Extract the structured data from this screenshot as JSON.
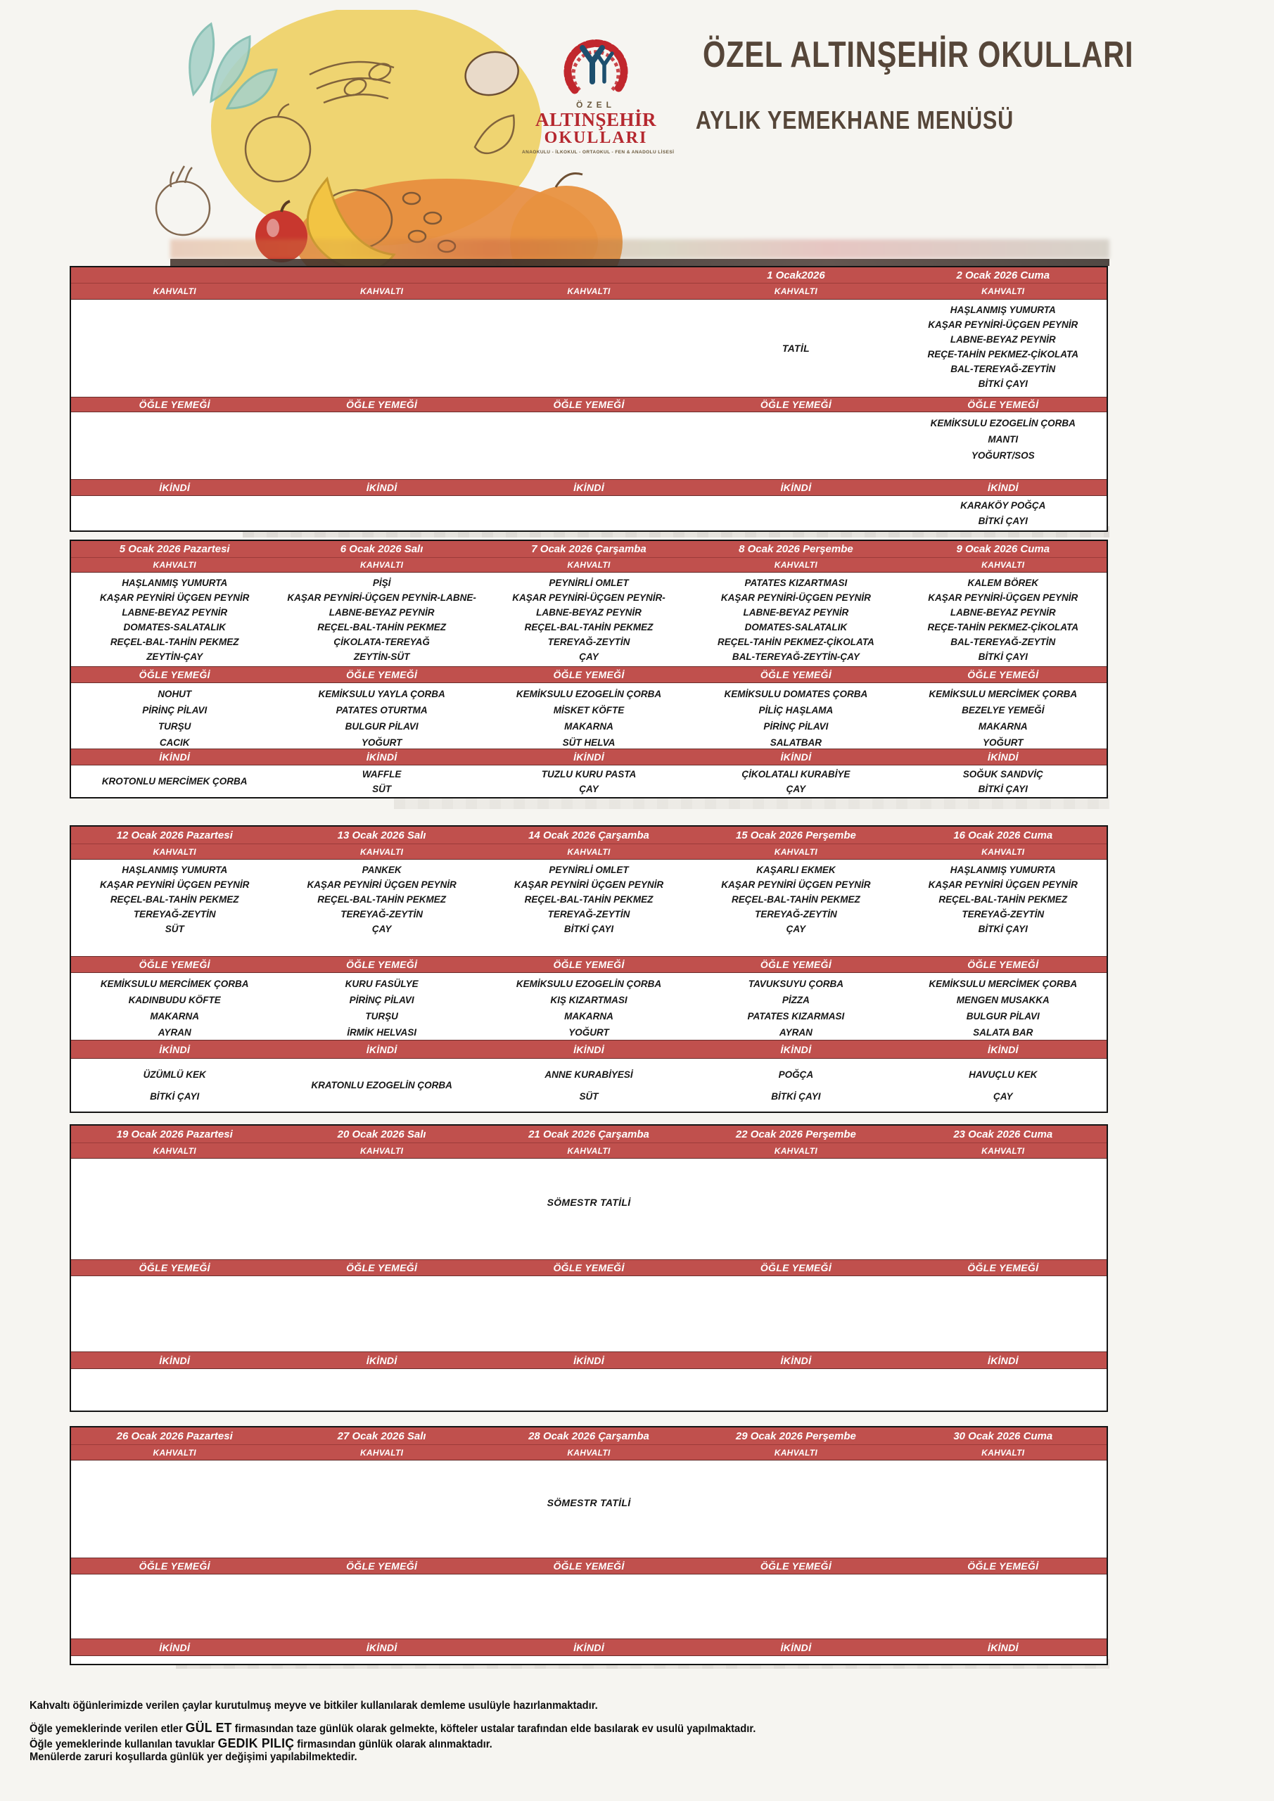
{
  "colors": {
    "accent": "#c0504d",
    "brand_red": "#b5282f",
    "brand_blue": "#1d4f6e",
    "brand_brown": "#564639"
  },
  "header": {
    "logo": {
      "ozel": "ÖZEL",
      "name1": "ALTINŞEHİR",
      "name2": "OKULLARI",
      "tagline": "ANAOKULU - İLKOKUL - ORTAOKUL - FEN & ANADOLU LİSESİ"
    },
    "title": "ÖZEL ALTINŞEHİR OKULLARI",
    "subtitle": "AYLIK YEMEKHANE MENÜSÜ"
  },
  "labels": {
    "kahvalti": "KAHVALTI",
    "ogle_yemegi": "ÖĞLE YEMEĞİ",
    "ikindi": "İKİNDİ"
  },
  "weeks": [
    {
      "holiday": null,
      "days": [
        {
          "date": "",
          "breakfast": [],
          "lunch": [],
          "snack": []
        },
        {
          "date": "",
          "breakfast": [],
          "lunch": [],
          "snack": []
        },
        {
          "date": "",
          "breakfast": [],
          "lunch": [],
          "snack": []
        },
        {
          "date": "1 Ocak2026",
          "breakfast_note": "TATİL",
          "breakfast": [],
          "lunch": [],
          "snack": []
        },
        {
          "date": "2 Ocak 2026 Cuma",
          "breakfast": [
            "HAŞLANMIŞ YUMURTA",
            "KAŞAR PEYNİRİ-ÜÇGEN PEYNİR",
            "LABNE-BEYAZ PEYNİR",
            "REÇE-TAHİN PEKMEZ-ÇİKOLATA",
            "BAL-TEREYAĞ-ZEYTİN",
            "BİTKİ ÇAYI"
          ],
          "lunch": [
            "KEMİKSULU EZOGELİN ÇORBA",
            "MANTI",
            "YOĞURT/SOS"
          ],
          "snack": [
            "KARAKÖY POĞÇA",
            "BİTKİ ÇAYI"
          ]
        }
      ]
    },
    {
      "holiday": null,
      "days": [
        {
          "date": "5 Ocak 2026 Pazartesi",
          "breakfast": [
            "HAŞLANMIŞ YUMURTA",
            "KAŞAR PEYNİRİ ÜÇGEN PEYNİR",
            "LABNE-BEYAZ PEYNİR",
            "DOMATES-SALATALIK",
            "REÇEL-BAL-TAHİN PEKMEZ",
            "ZEYTİN-ÇAY"
          ],
          "lunch": [
            "NOHUT",
            "PİRİNÇ PİLAVI",
            "TURŞU",
            "CACIK"
          ],
          "snack": [
            "KROTONLU MERCİMEK ÇORBA"
          ]
        },
        {
          "date": "6 Ocak 2026 Salı",
          "breakfast": [
            "PİŞİ",
            "KAŞAR PEYNİRİ-ÜÇGEN PEYNİR-LABNE-",
            "LABNE-BEYAZ PEYNİR",
            "REÇEL-BAL-TAHİN PEKMEZ",
            "ÇİKOLATA-TEREYAĞ",
            "ZEYTİN-SÜT"
          ],
          "lunch": [
            "KEMİKSULU YAYLA ÇORBA",
            "PATATES OTURTMA",
            "BULGUR PİLAVI",
            "YOĞURT"
          ],
          "snack": [
            "WAFFLE",
            "SÜT"
          ]
        },
        {
          "date": "7 Ocak 2026 Çarşamba",
          "breakfast": [
            "PEYNİRLİ OMLET",
            "KAŞAR PEYNİRİ-ÜÇGEN PEYNİR-",
            "LABNE-BEYAZ PEYNİR",
            "REÇEL-BAL-TAHİN PEKMEZ",
            "TEREYAĞ-ZEYTİN",
            "ÇAY"
          ],
          "lunch": [
            "KEMİKSULU EZOGELİN ÇORBA",
            "MİSKET KÖFTE",
            "MAKARNA",
            "SÜT HELVA"
          ],
          "snack": [
            "TUZLU KURU PASTA",
            "ÇAY"
          ]
        },
        {
          "date": "8 Ocak 2026 Perşembe",
          "breakfast": [
            "PATATES KIZARTMASI",
            "KAŞAR PEYNİRİ-ÜÇGEN PEYNİR",
            "LABNE-BEYAZ PEYNİR",
            "DOMATES-SALATALIK",
            "REÇEL-TAHİN PEKMEZ-ÇİKOLATA",
            "BAL-TEREYAĞ-ZEYTİN-ÇAY"
          ],
          "lunch": [
            "KEMİKSULU DOMATES ÇORBA",
            "PİLİÇ HAŞLAMA",
            "PİRİNÇ PİLAVI",
            "SALATBAR"
          ],
          "snack": [
            "ÇİKOLATALI KURABİYE",
            "ÇAY"
          ]
        },
        {
          "date": "9 Ocak 2026 Cuma",
          "breakfast": [
            "KALEM BÖREK",
            "KAŞAR PEYNİRİ-ÜÇGEN PEYNİR",
            "LABNE-BEYAZ PEYNİR",
            "REÇE-TAHİN PEKMEZ-ÇİKOLATA",
            "BAL-TEREYAĞ-ZEYTİN",
            "BİTKİ ÇAYI"
          ],
          "lunch": [
            "KEMİKSULU MERCİMEK ÇORBA",
            "BEZELYE YEMEĞİ",
            "MAKARNA",
            "YOĞURT"
          ],
          "snack": [
            "SOĞUK SANDVİÇ",
            "BİTKİ ÇAYI"
          ]
        }
      ]
    },
    {
      "holiday": null,
      "days": [
        {
          "date": "12 Ocak 2026 Pazartesi",
          "breakfast": [
            "HAŞLANMIŞ YUMURTA",
            "KAŞAR PEYNİRİ ÜÇGEN PEYNİR",
            "REÇEL-BAL-TAHİN PEKMEZ",
            "TEREYAĞ-ZEYTİN",
            "SÜT"
          ],
          "lunch": [
            "KEMİKSULU MERCİMEK ÇORBA",
            "KADINBUDU KÖFTE",
            "MAKARNA",
            "AYRAN"
          ],
          "snack": [
            "ÜZÜMLÜ KEK",
            "BİTKİ ÇAYI"
          ]
        },
        {
          "date": "13 Ocak 2026 Salı",
          "breakfast": [
            "PANKEK",
            "KAŞAR PEYNİRİ ÜÇGEN PEYNİR",
            "REÇEL-BAL-TAHİN PEKMEZ",
            "TEREYAĞ-ZEYTİN",
            "ÇAY"
          ],
          "lunch": [
            "KURU FASÜLYE",
            "PİRİNÇ PİLAVI",
            "TURŞU",
            "İRMİK HELVASI"
          ],
          "snack": [
            "KRATONLU EZOGELİN ÇORBA"
          ]
        },
        {
          "date": "14 Ocak 2026 Çarşamba",
          "breakfast": [
            "PEYNİRLİ OMLET",
            "KAŞAR PEYNİRİ ÜÇGEN PEYNİR",
            "REÇEL-BAL-TAHİN PEKMEZ",
            "TEREYAĞ-ZEYTİN",
            "BİTKİ ÇAYI"
          ],
          "lunch": [
            "KEMİKSULU EZOGELİN ÇORBA",
            "KIŞ KIZARTMASI",
            "MAKARNA",
            "YOĞURT"
          ],
          "snack": [
            "ANNE KURABİYESİ",
            "SÜT"
          ]
        },
        {
          "date": "15 Ocak 2026 Perşembe",
          "breakfast": [
            "KAŞARLI EKMEK",
            "KAŞAR PEYNİRİ ÜÇGEN PEYNİR",
            "REÇEL-BAL-TAHİN PEKMEZ",
            "TEREYAĞ-ZEYTİN",
            "ÇAY"
          ],
          "lunch": [
            "TAVUKSUYU ÇORBA",
            "PİZZA",
            "PATATES KIZARMASI",
            "AYRAN"
          ],
          "snack": [
            "POĞÇA",
            "BİTKİ ÇAYI"
          ]
        },
        {
          "date": "16 Ocak 2026 Cuma",
          "breakfast": [
            "HAŞLANMIŞ YUMURTA",
            "KAŞAR PEYNİRİ ÜÇGEN PEYNİR",
            "REÇEL-BAL-TAHİN PEKMEZ",
            "TEREYAĞ-ZEYTİN",
            "BİTKİ ÇAYI"
          ],
          "lunch": [
            "KEMİKSULU MERCİMEK ÇORBA",
            "MENGEN MUSAKKA",
            "BULGUR PİLAVI",
            "SALATA BAR"
          ],
          "snack": [
            "HAVUÇLU KEK",
            "ÇAY"
          ]
        }
      ]
    },
    {
      "holiday": "SÖMESTR TATİLİ",
      "days": [
        {
          "date": "19 Ocak 2026 Pazartesi",
          "breakfast": [],
          "lunch": [],
          "snack": []
        },
        {
          "date": "20 Ocak 2026 Salı",
          "breakfast": [],
          "lunch": [],
          "snack": []
        },
        {
          "date": "21 Ocak 2026 Çarşamba",
          "breakfast": [],
          "lunch": [],
          "snack": []
        },
        {
          "date": "22 Ocak 2026 Perşembe",
          "breakfast": [],
          "lunch": [],
          "snack": []
        },
        {
          "date": "23 Ocak 2026 Cuma",
          "breakfast": [],
          "lunch": [],
          "snack": []
        }
      ]
    },
    {
      "holiday": "SÖMESTR TATİLİ",
      "days": [
        {
          "date": "26 Ocak 2026 Pazartesi",
          "breakfast": [],
          "lunch": [],
          "snack": []
        },
        {
          "date": "27 Ocak 2026 Salı",
          "breakfast": [],
          "lunch": [],
          "snack": []
        },
        {
          "date": "28 Ocak 2026 Çarşamba",
          "breakfast": [],
          "lunch": [],
          "snack": []
        },
        {
          "date": "29 Ocak 2026 Perşembe",
          "breakfast": [],
          "lunch": [],
          "snack": []
        },
        {
          "date": "30 Ocak 2026 Cuma",
          "breakfast": [],
          "lunch": [],
          "snack": []
        }
      ]
    }
  ],
  "footer": {
    "lines": [
      {
        "segments": [
          {
            "text": "Kahvaltı öğünlerimizde verilen çaylar kurutulmuş meyve ve bitkiler kullanılarak demleme usulüyle hazırlanmaktadır."
          }
        ]
      },
      {
        "segments": [
          {
            "text": "Öğle yemeklerinde verilen etler "
          },
          {
            "text": "GÜL ET",
            "emphasis": true
          },
          {
            "text": " firmasından taze günlük olarak gelmekte, köfteler ustalar tarafından elde basılarak ev usulü yapılmaktadır."
          }
        ]
      },
      {
        "segments": [
          {
            "text": "Öğle yemeklerinde kullanılan tavuklar "
          },
          {
            "text": "GEDIK PILIÇ",
            "emphasis": true
          },
          {
            "text": " firmasından günlük olarak alınmaktadır."
          }
        ]
      },
      {
        "segments": [
          {
            "text": "Menülerde zaruri koşullarda günlük yer değişimi yapılabilmektedir."
          }
        ]
      }
    ]
  }
}
